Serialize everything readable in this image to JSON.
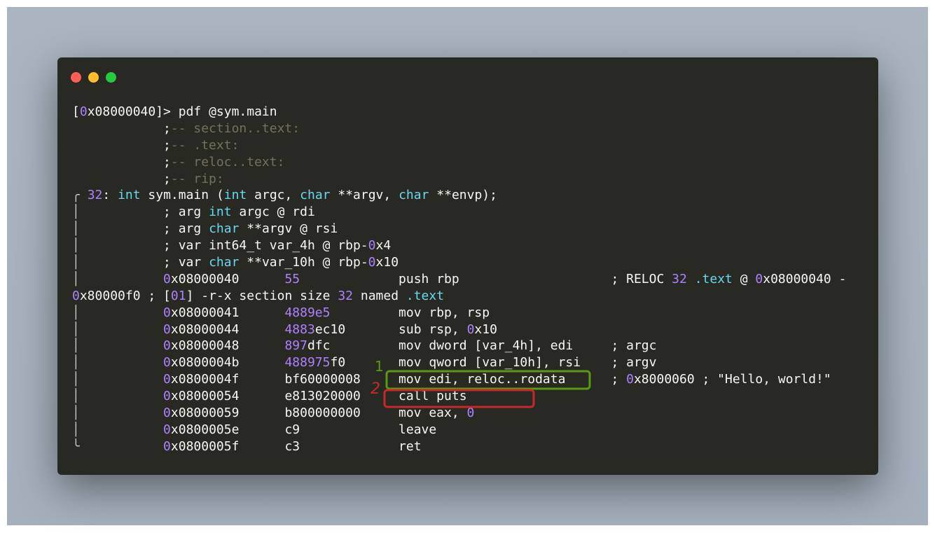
{
  "window": {
    "controls": {
      "close_color": "#ff5f56",
      "minimize_color": "#ffbd2e",
      "maximize_color": "#27c93f"
    }
  },
  "colors": {
    "background": "#282923",
    "text": "#f8f8f2",
    "number": "#ae81ff",
    "keyword": "#66d9ef",
    "comment": "#75715e"
  },
  "terminal": {
    "lines": [
      [
        [
          "w",
          "["
        ],
        [
          "p",
          "0"
        ],
        [
          "w",
          "x08000040]> pdf @sym.main"
        ]
      ],
      [
        [
          "w",
          "            ;"
        ],
        [
          "g",
          "-- section..text:"
        ]
      ],
      [
        [
          "w",
          "            ;"
        ],
        [
          "g",
          "-- .text:"
        ]
      ],
      [
        [
          "w",
          "            ;"
        ],
        [
          "g",
          "-- reloc..text:"
        ]
      ],
      [
        [
          "w",
          "            ;"
        ],
        [
          "g",
          "-- rip:"
        ]
      ],
      [
        [
          "b",
          "╭ "
        ],
        [
          "p",
          "32"
        ],
        [
          "w",
          ": "
        ],
        [
          "c",
          "int"
        ],
        [
          "w",
          " sym.main ("
        ],
        [
          "c",
          "int"
        ],
        [
          "w",
          " argc, "
        ],
        [
          "c",
          "char"
        ],
        [
          "w",
          " **argv, "
        ],
        [
          "c",
          "char"
        ],
        [
          "w",
          " **envp);"
        ]
      ],
      [
        [
          "b",
          "│"
        ],
        [
          "w",
          "           ; arg "
        ],
        [
          "c",
          "int"
        ],
        [
          "w",
          " argc @ rdi"
        ]
      ],
      [
        [
          "b",
          "│"
        ],
        [
          "w",
          "           ; arg "
        ],
        [
          "c",
          "char"
        ],
        [
          "w",
          " **argv @ rsi"
        ]
      ],
      [
        [
          "b",
          "│"
        ],
        [
          "w",
          "           ; var int64_t var_4h @ rbp-"
        ],
        [
          "p",
          "0"
        ],
        [
          "w",
          "x4"
        ]
      ],
      [
        [
          "b",
          "│"
        ],
        [
          "w",
          "           ; var "
        ],
        [
          "c",
          "char"
        ],
        [
          "w",
          " **var_10h @ rbp-"
        ],
        [
          "p",
          "0"
        ],
        [
          "w",
          "x10"
        ]
      ],
      [
        [
          "b",
          "│"
        ],
        [
          "w",
          "           "
        ],
        [
          "p",
          "0"
        ],
        [
          "w",
          "x08000040      "
        ],
        [
          "p",
          "55"
        ],
        [
          "w",
          "             push rbp                    ; RELOC "
        ],
        [
          "p",
          "32"
        ],
        [
          "w",
          " "
        ],
        [
          "c",
          ".text"
        ],
        [
          "w",
          " @ "
        ],
        [
          "p",
          "0"
        ],
        [
          "w",
          "x08000040 -"
        ]
      ],
      [
        [
          "p",
          "0"
        ],
        [
          "w",
          "x80000f0 ; ["
        ],
        [
          "p",
          "01"
        ],
        [
          "w",
          "] -r-x section size "
        ],
        [
          "p",
          "32"
        ],
        [
          "w",
          " named "
        ],
        [
          "c",
          ".text"
        ]
      ],
      [
        [
          "b",
          "│"
        ],
        [
          "w",
          "           "
        ],
        [
          "p",
          "0"
        ],
        [
          "w",
          "x08000041      "
        ],
        [
          "p",
          "4889e5"
        ],
        [
          "w",
          "         mov rbp, rsp"
        ]
      ],
      [
        [
          "b",
          "│"
        ],
        [
          "w",
          "           "
        ],
        [
          "p",
          "0"
        ],
        [
          "w",
          "x08000044      "
        ],
        [
          "p",
          "4883"
        ],
        [
          "w",
          "ec10       sub rsp, "
        ],
        [
          "p",
          "0"
        ],
        [
          "w",
          "x10"
        ]
      ],
      [
        [
          "b",
          "│"
        ],
        [
          "w",
          "           "
        ],
        [
          "p",
          "0"
        ],
        [
          "w",
          "x08000048      "
        ],
        [
          "p",
          "897"
        ],
        [
          "w",
          "dfc         mov dword [var_4h], edi     ; argc"
        ]
      ],
      [
        [
          "b",
          "│"
        ],
        [
          "w",
          "           "
        ],
        [
          "p",
          "0"
        ],
        [
          "w",
          "x0800004b      "
        ],
        [
          "p",
          "488975"
        ],
        [
          "w",
          "f0       mov qword [var_10h], rsi    ; argv"
        ]
      ],
      [
        [
          "b",
          "│"
        ],
        [
          "w",
          "           "
        ],
        [
          "p",
          "0"
        ],
        [
          "w",
          "x0800004f      bf60000008     mov edi, reloc..rodata      ; "
        ],
        [
          "p",
          "0"
        ],
        [
          "w",
          "x8000060 ; \"Hello, world!\""
        ]
      ],
      [
        [
          "b",
          "│"
        ],
        [
          "w",
          "           "
        ],
        [
          "p",
          "0"
        ],
        [
          "w",
          "x08000054      e813020000     call puts"
        ]
      ],
      [
        [
          "b",
          "│"
        ],
        [
          "w",
          "           "
        ],
        [
          "p",
          "0"
        ],
        [
          "w",
          "x08000059      b800000000     mov eax, "
        ],
        [
          "p",
          "0"
        ]
      ],
      [
        [
          "b",
          "│"
        ],
        [
          "w",
          "           "
        ],
        [
          "p",
          "0"
        ],
        [
          "w",
          "x0800005e      c9             leave"
        ]
      ],
      [
        [
          "b",
          "╰"
        ],
        [
          "w",
          "           "
        ],
        [
          "p",
          "0"
        ],
        [
          "w",
          "x0800005f      c3             ret"
        ]
      ]
    ]
  },
  "annotations": [
    {
      "label": "1",
      "color": "#5a9a12",
      "target": "mov edi, reloc..rodata"
    },
    {
      "label": "2",
      "color": "#c8282a",
      "target": "call puts"
    }
  ]
}
